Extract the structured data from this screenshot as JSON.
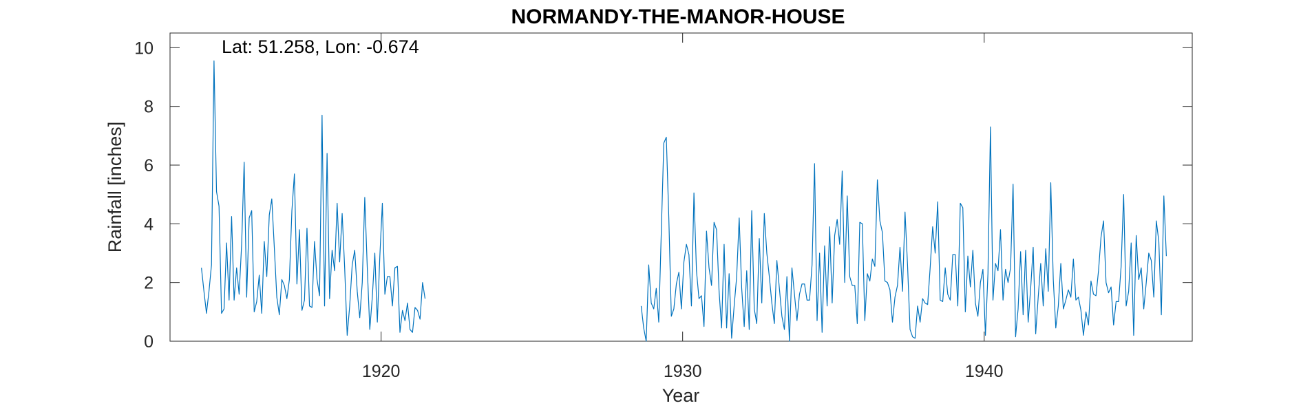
{
  "chart_data": {
    "type": "line",
    "title": "NORMANDY-THE-MANOR-HOUSE",
    "annotation": "Lat: 51.258, Lon: -0.674",
    "xlabel": "Year",
    "ylabel": "Rainfall [inches]",
    "xlim": [
      1913.0,
      1946.9
    ],
    "ylim": [
      0,
      10.5
    ],
    "xticks": [
      1920,
      1930,
      1940
    ],
    "yticks": [
      0,
      2,
      4,
      6,
      8,
      10
    ],
    "grid": false,
    "line_color": "#0072BD",
    "series": [
      {
        "segments": [
          {
            "start": [
              1914,
              1
            ],
            "values": [
              2.5,
              1.7,
              0.95,
              1.7,
              2.6,
              9.55,
              5.1,
              4.6,
              0.95,
              1.1,
              3.35,
              1.4,
              4.25,
              1.4,
              2.5,
              1.6,
              3.3,
              6.1,
              1.5,
              4.2,
              4.45,
              1.0,
              1.35,
              2.25,
              0.95,
              3.4,
              2.2,
              4.3,
              4.85,
              3.2,
              1.5,
              0.9,
              2.1,
              1.9,
              1.45,
              2.1,
              4.45,
              5.7,
              1.95,
              3.8,
              1.05,
              1.4,
              3.85,
              1.2,
              1.15,
              3.4,
              2.1,
              1.55,
              7.7,
              1.2,
              6.4,
              1.45,
              3.1,
              2.4,
              4.7,
              2.7,
              4.35,
              2.5,
              0.2,
              1.2,
              2.6,
              3.1,
              1.7,
              0.8,
              2.0,
              4.9,
              2.5,
              0.4,
              1.5,
              3.0,
              0.65,
              2.9,
              4.7,
              1.6,
              2.2,
              2.2,
              1.2,
              2.5,
              2.55,
              0.3,
              1.05,
              0.7,
              1.3,
              0.4,
              0.3,
              1.15,
              1.05,
              0.75,
              2.0,
              1.45
            ]
          },
          {
            "start": [
              1928,
              8
            ],
            "values": [
              1.2,
              0.45,
              0.0,
              2.6,
              1.3,
              1.1,
              1.8,
              0.65,
              3.7,
              6.75,
              6.95,
              4.2,
              0.85,
              1.1,
              1.95,
              2.35,
              1.1,
              2.7,
              3.3,
              2.95,
              1.2,
              5.05,
              2.4,
              1.45,
              1.55,
              0.5,
              3.75,
              2.5,
              1.9,
              4.05,
              3.8,
              1.7,
              0.45,
              3.3,
              0.45,
              2.3,
              0.1,
              1.2,
              2.2,
              4.2,
              1.8,
              0.5,
              2.4,
              0.4,
              4.45,
              1.1,
              0.6,
              3.5,
              1.3,
              4.35,
              3.0,
              2.2,
              1.3,
              0.6,
              2.75,
              1.8,
              0.85,
              0.4,
              2.2,
              0.0,
              2.5,
              1.6,
              0.7,
              1.6,
              1.95,
              1.95,
              1.4,
              1.4,
              2.6,
              6.05,
              0.7,
              3.0,
              0.3,
              3.25,
              1.2,
              3.9,
              1.3,
              3.6,
              4.15,
              3.3,
              5.8,
              2.0,
              4.95,
              2.2,
              1.9,
              1.9,
              0.6,
              4.05,
              4.0,
              0.7,
              2.3,
              2.05,
              2.8,
              2.55,
              5.5,
              4.1,
              3.7,
              2.05,
              2.0,
              1.75,
              0.65,
              1.5,
              1.9,
              3.2,
              1.7,
              4.4,
              2.6,
              0.4,
              0.15,
              0.1,
              1.2,
              0.65,
              1.45,
              1.3,
              1.25,
              2.5,
              3.9,
              3.0,
              4.75,
              1.4,
              1.35,
              2.5,
              1.6,
              1.4,
              2.95,
              2.95,
              1.2,
              4.7,
              4.55,
              1.0,
              2.9,
              1.85,
              3.1,
              1.3,
              0.85,
              2.0,
              2.45,
              0.2,
              2.3,
              7.3,
              1.4,
              2.65,
              2.4,
              3.8,
              1.4,
              2.45,
              2.0,
              2.5,
              5.35,
              0.15,
              1.1,
              3.05,
              0.9,
              3.1,
              0.65,
              1.8,
              3.2,
              0.25,
              1.5,
              2.65,
              1.2,
              3.15,
              1.7,
              5.4,
              2.1,
              0.45,
              1.2,
              2.65,
              1.1,
              1.4,
              1.75,
              1.5,
              2.8,
              1.4,
              1.5,
              1.05,
              0.2,
              1.0,
              0.55,
              2.05,
              1.6,
              1.55,
              2.4,
              3.55,
              4.1,
              2.0,
              1.65,
              1.85,
              0.55,
              1.35,
              1.35,
              2.55,
              5.0,
              1.2,
              1.7,
              3.35,
              0.2,
              3.6,
              2.1,
              2.5,
              1.1,
              2.0,
              3.0,
              2.75,
              1.5,
              4.1,
              3.4,
              0.9,
              4.95,
              2.9
            ]
          }
        ]
      }
    ]
  }
}
